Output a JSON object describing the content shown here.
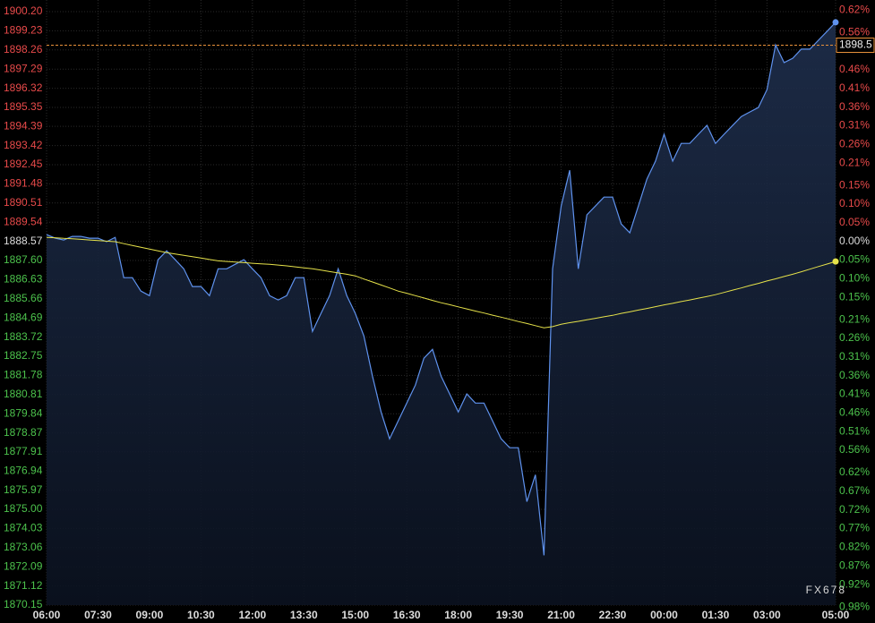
{
  "chart_data": {
    "type": "line",
    "watermark": "FX678",
    "grid": true,
    "up_color": "#e84a4a",
    "down_color": "#4cc24c",
    "flat_color": "#dddddd",
    "last_price": 1898.5,
    "last_price_color": "#e8913a",
    "x": [
      "06:00",
      null,
      null,
      null,
      null,
      null,
      "07:30",
      null,
      null,
      null,
      null,
      null,
      "09:00",
      null,
      null,
      null,
      null,
      null,
      "10:30",
      null,
      null,
      null,
      null,
      null,
      "12:00",
      null,
      null,
      null,
      null,
      null,
      "13:30",
      null,
      null,
      null,
      null,
      null,
      "15:00",
      null,
      null,
      null,
      null,
      null,
      "16:30",
      null,
      null,
      null,
      null,
      null,
      "18:00",
      null,
      null,
      null,
      null,
      null,
      "19:30",
      null,
      null,
      null,
      null,
      null,
      "21:00",
      null,
      null,
      null,
      null,
      null,
      "22:30",
      null,
      null,
      null,
      null,
      null,
      "00:00",
      null,
      null,
      null,
      null,
      null,
      "01:30",
      null,
      null,
      null,
      null,
      null,
      "03:00",
      null,
      null,
      null,
      null,
      null,
      null,
      null,
      "05:00"
    ],
    "series": [
      {
        "color": "#5f92ee",
        "values": [
          1888.91,
          1888.73,
          1888.64,
          1888.82,
          1888.82,
          1888.73,
          1888.73,
          1888.55,
          1888.77,
          1886.73,
          1886.73,
          1886.05,
          1885.82,
          1887.64,
          1888.09,
          1887.64,
          1887.18,
          1886.28,
          1886.28,
          1885.82,
          1887.18,
          1887.18,
          1887.41,
          1887.64,
          1887.18,
          1886.73,
          1885.82,
          1885.6,
          1885.82,
          1886.73,
          1886.73,
          1884.01,
          1884.92,
          1885.82,
          1887.18,
          1885.82,
          1884.92,
          1883.78,
          1881.74,
          1879.93,
          1878.57,
          1879.48,
          1880.38,
          1881.29,
          1882.65,
          1883.1,
          1881.74,
          1880.84,
          1879.93,
          1880.84,
          1880.38,
          1880.38,
          1879.48,
          1878.57,
          1878.12,
          1878.12,
          1875.39,
          1876.75,
          1872.67,
          1887.18,
          1890.36,
          1892.17,
          1887.18,
          1889.91,
          1890.36,
          1890.81,
          1890.81,
          1889.45,
          1889,
          1890.36,
          1891.72,
          1892.63,
          1893.99,
          1892.63,
          1893.53,
          1893.53,
          1893.99,
          1894.44,
          1893.53,
          1893.99,
          1894.44,
          1894.89,
          1895.12,
          1895.35,
          1896.25,
          1898.52,
          1897.62,
          1897.84,
          1898.3,
          1898.3,
          1898.75,
          1899.2,
          1899.66
        ]
      },
      {
        "color": "#e6e24a",
        "values": [
          1888.77,
          1888.75,
          1888.72,
          1888.7,
          1888.67,
          1888.64,
          1888.61,
          1888.58,
          1888.55,
          1888.45,
          1888.36,
          1888.27,
          1888.18,
          1888.09,
          1888,
          1887.93,
          1887.86,
          1887.79,
          1887.72,
          1887.65,
          1887.58,
          1887.55,
          1887.52,
          1887.49,
          1887.46,
          1887.43,
          1887.41,
          1887.37,
          1887.33,
          1887.28,
          1887.23,
          1887.18,
          1887.11,
          1887.04,
          1886.97,
          1886.9,
          1886.82,
          1886.66,
          1886.51,
          1886.36,
          1886.21,
          1886.05,
          1885.94,
          1885.82,
          1885.7,
          1885.58,
          1885.46,
          1885.36,
          1885.25,
          1885.15,
          1885.04,
          1884.94,
          1884.83,
          1884.73,
          1884.62,
          1884.51,
          1884.41,
          1884.3,
          1884.19,
          1884.25,
          1884.37,
          1884.45,
          1884.52,
          1884.6,
          1884.67,
          1884.75,
          1884.82,
          1884.92,
          1885,
          1885.09,
          1885.17,
          1885.26,
          1885.35,
          1885.43,
          1885.52,
          1885.6,
          1885.69,
          1885.78,
          1885.87,
          1885.98,
          1886.1,
          1886.21,
          1886.33,
          1886.44,
          1886.56,
          1886.67,
          1886.79,
          1886.9,
          1887.03,
          1887.16,
          1887.29,
          1887.42,
          1887.55
        ]
      }
    ],
    "ylim": [
      1870.15,
      1900.2
    ],
    "yticks": [
      {
        "value": 1900.2,
        "label": "1900.20"
      },
      1899.23,
      1898.26,
      1897.29,
      1896.32,
      1895.35,
      1894.39,
      1893.42,
      1892.45,
      1891.48,
      1890.51,
      1889.54,
      1888.57,
      {
        "value": 1887.6,
        "label": "1887.60"
      },
      1886.63,
      1885.66,
      1884.69,
      1883.72,
      1882.75,
      1881.78,
      1880.81,
      1879.84,
      1878.87,
      1877.91,
      1876.94,
      1875.97,
      {
        "value": 1875,
        "label": "1875.00"
      },
      1874.03,
      1873.06,
      1872.09,
      1871.12,
      1870.15
    ],
    "y2lim": [
      -0.975,
      0.616
    ],
    "y2ticks": [
      {
        "value": 0.62,
        "label": "0.62%"
      },
      {
        "value": 0.56,
        "label": "0.56%"
      },
      {
        "value": 0.46,
        "label": "0.46%"
      },
      {
        "value": 0.41,
        "label": "0.41%"
      },
      {
        "value": 0.36,
        "label": "0.36%"
      },
      {
        "value": 0.31,
        "label": "0.31%"
      },
      {
        "value": 0.26,
        "label": "0.26%"
      },
      {
        "value": 0.21,
        "label": "0.21%"
      },
      {
        "value": 0.15,
        "label": "0.15%"
      },
      {
        "value": 0.1,
        "label": "0.10%"
      },
      {
        "value": 0.05,
        "label": "0.05%"
      },
      {
        "value": 0,
        "label": "0.00%"
      },
      {
        "value": -0.05,
        "label": "0.05%"
      },
      {
        "value": -0.1,
        "label": "0.10%"
      },
      {
        "value": -0.15,
        "label": "0.15%"
      },
      {
        "value": -0.21,
        "label": "0.21%"
      },
      {
        "value": -0.26,
        "label": "0.26%"
      },
      {
        "value": -0.31,
        "label": "0.31%"
      },
      {
        "value": -0.36,
        "label": "0.36%"
      },
      {
        "value": -0.41,
        "label": "0.41%"
      },
      {
        "value": -0.46,
        "label": "0.46%"
      },
      {
        "value": -0.51,
        "label": "0.51%"
      },
      {
        "value": -0.56,
        "label": "0.56%"
      },
      {
        "value": -0.62,
        "label": "0.62%"
      },
      {
        "value": -0.67,
        "label": "0.67%"
      },
      {
        "value": -0.72,
        "label": "0.72%"
      },
      {
        "value": -0.77,
        "label": "0.77%"
      },
      {
        "value": -0.82,
        "label": "0.82%"
      },
      {
        "value": -0.87,
        "label": "0.87%"
      },
      {
        "value": -0.92,
        "label": "0.92%"
      },
      {
        "value": -0.98,
        "label": "0.98%"
      }
    ]
  }
}
